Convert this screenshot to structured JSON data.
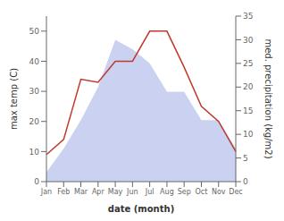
{
  "chart_data": {
    "type": "line",
    "categories": [
      "Jan",
      "Feb",
      "Mar",
      "Apr",
      "May",
      "Jun",
      "Jul",
      "Aug",
      "Sep",
      "Oct",
      "Nov",
      "Dec"
    ],
    "series": [
      {
        "type": "area",
        "axis": "y2",
        "color": "#c5cdf0",
        "values": [
          2,
          7,
          13,
          20,
          30,
          28,
          25,
          19,
          19,
          13,
          13,
          7
        ]
      },
      {
        "type": "line",
        "color": "#c0392b",
        "values": [
          9,
          14,
          34,
          33,
          40,
          40,
          50,
          50,
          38,
          25,
          20,
          10
        ]
      }
    ],
    "xlabel": "date (month)",
    "ylabel": "max temp (C)",
    "y2label": "med. precipitation (kg/m2)",
    "ylim": [
      0,
      55
    ],
    "yticks": [
      0,
      10,
      20,
      30,
      40,
      50
    ],
    "y2lim": [
      0,
      35
    ],
    "y2ticks": [
      0,
      5,
      10,
      15,
      20,
      25,
      30,
      35
    ],
    "grid": false
  }
}
